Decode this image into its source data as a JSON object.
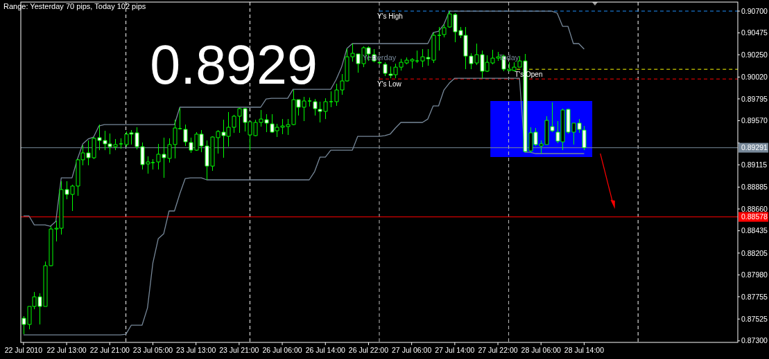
{
  "chart_data": {
    "type": "candlestick",
    "title": "Range: Yesterday 70 pips, Today 102 pips",
    "annotations": [
      "0.8929",
      "Yesterday",
      "Today"
    ],
    "categories": [
      "22 Jul 2010",
      null,
      null,
      null,
      null,
      null,
      null,
      null,
      "22 Jul 13:00",
      null,
      null,
      null,
      null,
      null,
      null,
      null,
      "22 Jul 21:00",
      null,
      null,
      null,
      null,
      null,
      null,
      null,
      "23 Jul 05:00",
      null,
      null,
      null,
      null,
      null,
      null,
      null,
      "23 Jul 13:00",
      null,
      null,
      null,
      null,
      null,
      null,
      null,
      "23 Jul 21:00",
      null,
      null,
      null,
      null,
      null,
      null,
      null,
      "26 Jul 06:00",
      null,
      null,
      null,
      null,
      null,
      null,
      null,
      "26 Jul 14:00",
      null,
      null,
      null,
      null,
      null,
      null,
      null,
      "26 Jul 22:00",
      null,
      null,
      null,
      null,
      null,
      null,
      null,
      "27 Jul 06:00",
      null,
      null,
      null,
      null,
      null,
      null,
      null,
      "27 Jul 14:00",
      null,
      null,
      null,
      null,
      null,
      null,
      null,
      "27 Jul 22:00",
      null,
      null,
      null,
      null,
      null,
      null,
      null,
      "28 Jul 06:00",
      null,
      null,
      null,
      null,
      null,
      null,
      null,
      "28 Jul 14:00",
      null,
      null,
      null,
      null,
      null,
      null,
      null,
      null,
      null,
      null,
      null,
      null,
      null,
      null,
      null,
      null,
      null,
      null,
      null,
      null,
      null,
      null,
      null,
      null,
      null,
      null,
      null,
      null
    ],
    "ylim": [
      0.87284,
      0.90793
    ],
    "yticks": [
      {
        "value": 0.907,
        "label": "0.90700"
      },
      {
        "value": 0.90475,
        "label": "0.90475"
      },
      {
        "value": 0.9025,
        "label": "0.90250"
      },
      {
        "value": 0.9002,
        "label": "0.90020"
      },
      {
        "value": 0.89795,
        "label": "0.89795"
      },
      {
        "value": 0.8957,
        "label": "0.89570"
      },
      {
        "value": 0.8934,
        "label": null
      },
      {
        "value": 0.89115,
        "label": "0.89115"
      },
      {
        "value": 0.88885,
        "label": "0.88885"
      },
      {
        "value": 0.8866,
        "label": "0.88660"
      },
      {
        "value": 0.88435,
        "label": "0.88435"
      },
      {
        "value": 0.88205,
        "label": "0.88205"
      },
      {
        "value": 0.8798,
        "label": "0.87980"
      },
      {
        "value": 0.87755,
        "label": "0.87755"
      },
      {
        "value": 0.87525,
        "label": "0.87525"
      },
      {
        "value": 0.873,
        "label": "0.87300"
      }
    ],
    "ref_lines": [
      {
        "axis": "y",
        "value": 0.907,
        "label": "Y's High",
        "color": "#1e90ff",
        "line_style": "dashed"
      },
      {
        "axis": "y",
        "value": 0.901,
        "label": "T's Open",
        "color": "#ffff00",
        "line_style": "dashed"
      },
      {
        "axis": "y",
        "value": 0.9,
        "label": "Y's Low",
        "color": "#ff0000",
        "line_style": "dashed"
      },
      {
        "axis": "y",
        "value": 0.89291,
        "label": "0.89291",
        "color": "#778899",
        "line_style": "solid"
      },
      {
        "axis": "y",
        "value": 0.88578,
        "label": "0.88578",
        "color": "#ff0000",
        "line_style": "solid"
      }
    ],
    "series": [
      {
        "type": "line",
        "color": "#778899",
        "values": [
          0.88589,
          0.88589,
          0.88496,
          0.88496,
          0.88496,
          0.88482,
          0.88532,
          0.88981,
          0.88981,
          0.88981,
          0.89174,
          0.89331,
          0.89381,
          0.89402,
          0.89516,
          0.8953,
          0.8953,
          0.8953,
          0.8953,
          0.8953,
          0.8953,
          0.8953,
          0.8953,
          0.8953,
          0.8953,
          0.8953,
          0.8953,
          0.8953,
          0.8953,
          0.89709,
          0.89709,
          0.89709,
          0.89709,
          0.89709,
          0.89709,
          0.89709,
          0.89709,
          0.89709,
          0.89709,
          0.89709,
          0.89709,
          0.89709,
          0.89709,
          0.89709,
          0.89709,
          0.89794,
          0.89801,
          0.89801,
          0.89801,
          0.89801,
          0.89894,
          0.89894,
          0.89894,
          0.89894,
          0.89894,
          0.89894,
          0.89894,
          0.89894,
          0.89994,
          0.90122,
          0.90315,
          0.90365,
          0.90365,
          0.90365,
          0.90365,
          0.90365,
          0.90365,
          0.90365,
          0.90365,
          0.90365,
          0.90365,
          0.90365,
          0.90365,
          0.90365,
          0.90365,
          0.90365,
          0.90479,
          0.90493,
          0.90564,
          0.907,
          0.907,
          0.907,
          0.907,
          0.907,
          0.907,
          0.907,
          0.907,
          0.907,
          0.907,
          0.907,
          0.907,
          0.907,
          0.907,
          0.907,
          0.907,
          0.907,
          0.907,
          0.907,
          0.907,
          0.90679,
          0.90543,
          0.90543,
          0.90365,
          0.90365,
          0.90308,
          null,
          null,
          null,
          null,
          null,
          null,
          null,
          null,
          null,
          null,
          null,
          null,
          null,
          null,
          null,
          null,
          null,
          null,
          null,
          null,
          null,
          null,
          null,
          null,
          null,
          null,
          null,
          null
        ]
      },
      {
        "type": "line",
        "color": "#778899",
        "values": [
          0.87362,
          0.87362,
          0.87362,
          0.87362,
          0.87362,
          0.87362,
          0.87362,
          0.87362,
          0.87362,
          0.87362,
          0.87362,
          0.87362,
          0.87362,
          0.87362,
          0.87362,
          0.87362,
          0.87362,
          0.87362,
          0.87362,
          0.87369,
          0.87462,
          0.87462,
          0.87462,
          0.8764,
          0.88104,
          0.88354,
          0.88403,
          0.88639,
          0.88639,
          0.88817,
          0.88974,
          0.88981,
          0.88981,
          0.88981,
          0.8896,
          0.8896,
          0.8896,
          0.8896,
          0.8896,
          0.8896,
          0.8896,
          0.8896,
          0.8896,
          0.8896,
          0.8896,
          0.8896,
          0.8896,
          0.8896,
          0.8896,
          0.8896,
          0.8896,
          0.8896,
          0.8896,
          0.8896,
          0.89045,
          0.89195,
          0.89195,
          0.89266,
          0.89266,
          0.89266,
          0.89266,
          0.89266,
          0.89409,
          0.89409,
          0.89409,
          0.89409,
          0.89409,
          0.89416,
          0.89431,
          0.89495,
          0.89552,
          0.89552,
          0.89552,
          0.89552,
          0.89552,
          0.89587,
          0.89723,
          0.89723,
          0.89887,
          0.89958,
          0.90008,
          0.90008,
          0.90008,
          0.90008,
          0.90008,
          0.90008,
          0.90008,
          0.90008,
          0.90008,
          0.90008,
          0.90008,
          0.90008,
          0.90008,
          0.89245,
          0.89245,
          0.89231,
          0.89231,
          0.89231,
          0.89231,
          0.89231,
          0.89231,
          0.89231,
          0.89231,
          0.89231,
          0.89231,
          null,
          null,
          null,
          null,
          null,
          null,
          null,
          null,
          null,
          null,
          null,
          null,
          null,
          null,
          null,
          null,
          null,
          null,
          null,
          null,
          null,
          null,
          null,
          null,
          null,
          null,
          null,
          null
        ]
      },
      {
        "color": "#00ff00",
        "ohlc": [
          [
            0.87533,
            0.87555,
            0.87369,
            0.87469
          ],
          [
            0.87469,
            0.87655,
            0.87419,
            0.87655
          ],
          [
            0.87655,
            0.87804,
            0.87626,
            0.87754
          ],
          [
            0.87754,
            0.8779,
            0.87469,
            0.87655
          ],
          [
            0.87655,
            0.88118,
            0.87655,
            0.88075
          ],
          [
            0.88075,
            0.88482,
            0.88068,
            0.88453
          ],
          [
            0.88453,
            0.88539,
            0.88325,
            0.88461
          ],
          [
            0.88461,
            0.88946,
            0.88396,
            0.8886
          ],
          [
            0.8886,
            0.88946,
            0.8876,
            0.8881
          ],
          [
            0.8881,
            0.8891,
            0.88639,
            0.88896
          ],
          [
            0.88896,
            0.89174,
            0.88796,
            0.89167
          ],
          [
            0.89167,
            0.89316,
            0.8911,
            0.89238
          ],
          [
            0.89238,
            0.89366,
            0.8911,
            0.89188
          ],
          [
            0.89188,
            0.89402,
            0.89174,
            0.89388
          ],
          [
            0.89395,
            0.8953,
            0.89266,
            0.89366
          ],
          [
            0.89366,
            0.89466,
            0.89266,
            0.89331
          ],
          [
            0.89331,
            0.89438,
            0.89224,
            0.89302
          ],
          [
            0.89302,
            0.89381,
            0.89266,
            0.89324
          ],
          [
            0.89331,
            0.89388,
            0.89281,
            0.89331
          ],
          [
            0.89324,
            0.89459,
            0.89302,
            0.89431
          ],
          [
            0.89445,
            0.89473,
            0.89324,
            0.89431
          ],
          [
            0.89445,
            0.89502,
            0.89274,
            0.89302
          ],
          [
            0.89302,
            0.89345,
            0.89067,
            0.89117
          ],
          [
            0.89124,
            0.89202,
            0.89024,
            0.89145
          ],
          [
            0.89138,
            0.89174,
            0.89067,
            0.89138
          ],
          [
            0.89145,
            0.89331,
            0.89067,
            0.89224
          ],
          [
            0.89224,
            0.89395,
            0.88981,
            0.89188
          ],
          [
            0.89181,
            0.89388,
            0.89138,
            0.89324
          ],
          [
            0.89324,
            0.8958,
            0.89181,
            0.89495
          ],
          [
            0.89488,
            0.89702,
            0.8948,
            0.89488
          ],
          [
            0.8948,
            0.8953,
            0.89309,
            0.89352
          ],
          [
            0.89345,
            0.89395,
            0.89238,
            0.89266
          ],
          [
            0.89266,
            0.89452,
            0.89259,
            0.89431
          ],
          [
            0.89431,
            0.89473,
            0.89245,
            0.89309
          ],
          [
            0.89309,
            0.89366,
            0.8896,
            0.89102
          ],
          [
            0.89102,
            0.89409,
            0.89053,
            0.89402
          ],
          [
            0.89395,
            0.89473,
            0.89231,
            0.89459
          ],
          [
            0.89452,
            0.8958,
            0.89188,
            0.89416
          ],
          [
            0.89409,
            0.89659,
            0.89302,
            0.89502
          ],
          [
            0.89502,
            0.8963,
            0.89445,
            0.89616
          ],
          [
            0.89616,
            0.89702,
            0.89445,
            0.89694
          ],
          [
            0.89694,
            0.89702,
            0.89459,
            0.89552
          ],
          [
            0.89423,
            0.89559,
            0.89266,
            0.89559
          ],
          [
            0.89416,
            0.8958,
            0.89409,
            0.89552
          ],
          [
            0.89552,
            0.8968,
            0.89509,
            0.89587
          ],
          [
            0.8958,
            0.89637,
            0.89452,
            0.89545
          ],
          [
            0.89537,
            0.89637,
            0.89445,
            0.89452
          ],
          [
            0.89466,
            0.89537,
            0.89402,
            0.89502
          ],
          [
            0.89502,
            0.89587,
            0.89431,
            0.89516
          ],
          [
            0.89509,
            0.89587,
            0.89423,
            0.8953
          ],
          [
            0.8953,
            0.89887,
            0.89523,
            0.89787
          ],
          [
            0.89787,
            0.89787,
            0.89623,
            0.89709
          ],
          [
            0.89709,
            0.89816,
            0.89566,
            0.89773
          ],
          [
            0.89773,
            0.89808,
            0.89716,
            0.89773
          ],
          [
            0.89766,
            0.89794,
            0.89623,
            0.89694
          ],
          [
            0.89687,
            0.89766,
            0.89552,
            0.89666
          ],
          [
            0.89666,
            0.89801,
            0.89587,
            0.89766
          ],
          [
            0.89766,
            0.89873,
            0.89709,
            0.89766
          ],
          [
            0.89766,
            0.89951,
            0.89723,
            0.89887
          ],
          [
            0.89887,
            0.90051,
            0.89837,
            0.8998
          ],
          [
            0.8998,
            0.90315,
            0.89973,
            0.90229
          ],
          [
            0.90229,
            0.90365,
            0.90179,
            0.90265
          ],
          [
            0.90258,
            0.90258,
            0.90065,
            0.90158
          ],
          [
            0.90158,
            0.90336,
            0.90122,
            0.90322
          ],
          [
            0.90322,
            0.90336,
            0.90186,
            0.90258
          ],
          [
            0.90251,
            0.90308,
            0.90172,
            0.90186
          ],
          [
            0.90172,
            0.90179,
            0.90151,
            0.90165
          ],
          [
            0.90151,
            0.90172,
            0.9003,
            0.90058
          ],
          [
            0.90051,
            0.90129,
            0.90008,
            0.90037
          ],
          [
            0.90044,
            0.90158,
            0.90008,
            0.90122
          ],
          [
            0.90122,
            0.90208,
            0.90087,
            0.90172
          ],
          [
            0.90165,
            0.90222,
            0.90151,
            0.90194
          ],
          [
            0.90186,
            0.90215,
            0.90108,
            0.90201
          ],
          [
            0.90186,
            0.90293,
            0.90165,
            0.90186
          ],
          [
            0.90186,
            0.90308,
            0.90122,
            0.90229
          ],
          [
            0.90222,
            0.90308,
            0.90137,
            0.90208
          ],
          [
            0.90194,
            0.90479,
            0.90165,
            0.9045
          ],
          [
            0.9045,
            0.90536,
            0.90293,
            0.9045
          ],
          [
            0.90458,
            0.90564,
            0.90429,
            0.90529
          ],
          [
            0.90536,
            0.907,
            0.90529,
            0.90671
          ],
          [
            0.90664,
            0.90679,
            0.90379,
            0.90486
          ],
          [
            0.905,
            0.90536,
            0.90422,
            0.9045
          ],
          [
            0.9045,
            0.90536,
            0.90101,
            0.90236
          ],
          [
            0.90236,
            0.90265,
            0.90101,
            0.90158
          ],
          [
            0.90165,
            0.90365,
            0.90144,
            0.90251
          ],
          [
            0.90251,
            0.90293,
            0.90008,
            0.9008
          ],
          [
            0.9008,
            0.90244,
            0.90072,
            0.90172
          ],
          [
            0.90165,
            0.90301,
            0.90151,
            0.90215
          ],
          [
            0.90215,
            0.90279,
            0.90186,
            0.90229
          ],
          [
            0.90236,
            0.90251,
            0.9008,
            0.90101
          ],
          [
            0.90087,
            0.90172,
            0.9008,
            0.90101
          ],
          [
            0.90087,
            0.90172,
            0.9008,
            0.90122
          ],
          [
            0.90122,
            0.90236,
            0.90122,
            0.90186
          ],
          [
            0.90186,
            0.90258,
            0.89245,
            0.89252
          ],
          [
            0.89259,
            0.89502,
            0.89238,
            0.89445
          ],
          [
            0.89452,
            0.89495,
            0.89309,
            0.89324
          ],
          [
            0.89309,
            0.89366,
            0.89231,
            0.89331
          ],
          [
            0.89324,
            0.89616,
            0.89324,
            0.89573
          ],
          [
            0.89509,
            0.89759,
            0.89452,
            0.89466
          ],
          [
            0.89452,
            0.89566,
            0.89338,
            0.89359
          ],
          [
            0.89352,
            0.89694,
            0.89266,
            0.8968
          ],
          [
            0.89687,
            0.89694,
            0.89438,
            0.89452
          ],
          [
            0.89452,
            0.89545,
            0.89324,
            0.89545
          ],
          [
            0.89545,
            0.89587,
            0.89445,
            0.8948
          ],
          [
            0.89473,
            0.89516,
            0.89266,
            0.89291
          ],
          null,
          null,
          null,
          null,
          null,
          null,
          null,
          null,
          null,
          null,
          null,
          null,
          null,
          null,
          null,
          null,
          null,
          null,
          null,
          null,
          null,
          null,
          null,
          null,
          null,
          null,
          null,
          null
        ]
      }
    ]
  }
}
